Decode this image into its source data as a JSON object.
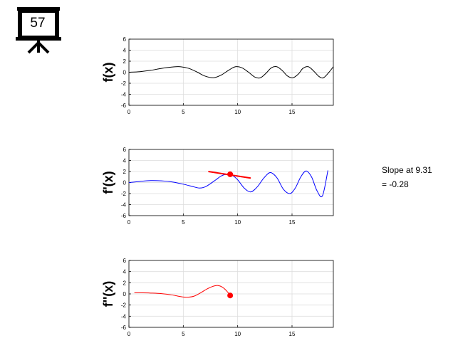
{
  "logo": {
    "number": "57"
  },
  "readout": {
    "line1": "Slope at 9.31",
    "line2": "= -0.28"
  },
  "colors": {
    "f": "#000000",
    "fprime": "#0000ff",
    "fdoubleprime": "#ff0000",
    "marker": "#ff0000",
    "tangent": "#ff0000",
    "grid": "#dddddd"
  },
  "chart_data": [
    {
      "type": "line",
      "ylabel": "f(x)",
      "xlim": [
        0,
        18.8
      ],
      "ylim": [
        -6,
        6
      ],
      "xticks": [
        0,
        5,
        10,
        15
      ],
      "yticks": [
        6,
        4,
        2,
        0,
        -2,
        -4,
        -6
      ],
      "grid": true,
      "series": [
        {
          "x": [
            0,
            1,
            2,
            3,
            4,
            4.7,
            5.5,
            6.3,
            7,
            7.8,
            8.5,
            9.2,
            9.8,
            10.4,
            11,
            11.6,
            12.1,
            12.6,
            13.1,
            13.6,
            14.1,
            14.6,
            15.1,
            15.6,
            16,
            16.5,
            17,
            17.5,
            17.9,
            18.4,
            18.8
          ],
          "y": [
            0,
            0.1,
            0.35,
            0.7,
            0.95,
            1.0,
            0.7,
            0,
            -0.7,
            -1.0,
            -0.5,
            0.4,
            1.0,
            0.8,
            0,
            -0.9,
            -1.0,
            -0.2,
            0.8,
            1.0,
            0.3,
            -0.7,
            -1.0,
            -0.3,
            0.7,
            1.0,
            0.2,
            -0.8,
            -1.0,
            0,
            1.0
          ]
        }
      ]
    },
    {
      "type": "line",
      "ylabel": "f'(x)",
      "xlim": [
        0,
        18.8
      ],
      "ylim": [
        -6,
        6
      ],
      "xticks": [
        0,
        5,
        10,
        15
      ],
      "yticks": [
        6,
        4,
        2,
        0,
        -2,
        -4,
        -6
      ],
      "grid": true,
      "series": [
        {
          "x": [
            0,
            1,
            2,
            3,
            4,
            5,
            6,
            6.5,
            7,
            7.5,
            8,
            8.5,
            9,
            9.5,
            10,
            10.6,
            11.2,
            11.8,
            12.4,
            13,
            13.6,
            14.2,
            14.8,
            15.3,
            15.8,
            16.3,
            16.8,
            17.3,
            17.8,
            18.3
          ],
          "y": [
            0,
            0.2,
            0.35,
            0.3,
            0.1,
            -0.3,
            -0.8,
            -1.0,
            -0.8,
            -0.2,
            0.5,
            1.2,
            1.5,
            1.3,
            0.5,
            -1.0,
            -1.7,
            -0.8,
            0.8,
            1.8,
            0.9,
            -1.2,
            -2.0,
            -1.0,
            1.0,
            2.1,
            1.0,
            -1.5,
            -2.4,
            2.2
          ]
        }
      ],
      "marker": {
        "x": 9.31,
        "y": 1.5
      },
      "tangent": {
        "x": [
          7.3,
          11.2
        ],
        "y": [
          2.0,
          0.8
        ]
      }
    },
    {
      "type": "line",
      "ylabel": "f''(x)",
      "xlim": [
        0,
        18.8
      ],
      "ylim": [
        -6,
        6
      ],
      "xticks": [
        0,
        5,
        10,
        15
      ],
      "yticks": [
        6,
        4,
        2,
        0,
        -2,
        -4,
        -6
      ],
      "grid": true,
      "series": [
        {
          "x": [
            0.5,
            1,
            2,
            3,
            4,
            4.8,
            5.4,
            6,
            6.6,
            7.2,
            7.8,
            8.2,
            8.6,
            9,
            9.31
          ],
          "y": [
            0.2,
            0.2,
            0.15,
            0.05,
            -0.2,
            -0.5,
            -0.6,
            -0.4,
            0.2,
            0.9,
            1.4,
            1.5,
            1.2,
            0.5,
            -0.28
          ]
        }
      ],
      "marker": {
        "x": 9.31,
        "y": -0.28
      }
    }
  ]
}
